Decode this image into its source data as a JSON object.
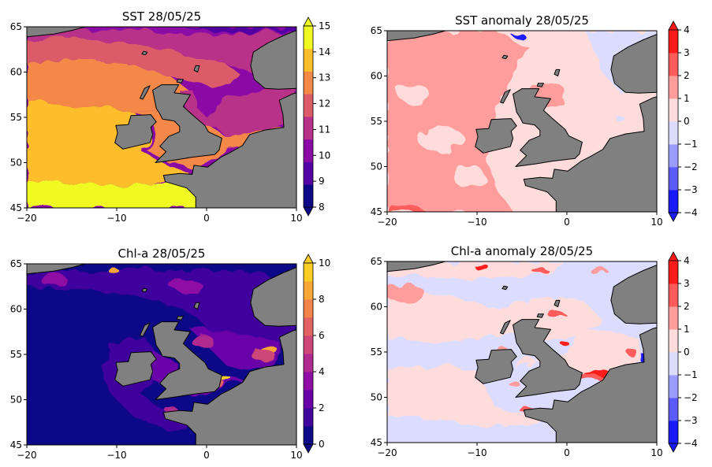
{
  "chart_data": [
    {
      "type": "heatmap",
      "title": "SST 28/05/25",
      "variable": "sst",
      "colormap": "plasma",
      "xlim": [
        -20,
        10
      ],
      "ylim": [
        45,
        65
      ],
      "xticks": [
        "−20",
        "−10",
        "0",
        "10"
      ],
      "yticks": [
        "45",
        "50",
        "55",
        "60",
        "65"
      ],
      "colorbar": {
        "ticks": [
          "8",
          "9",
          "10",
          "11",
          "12",
          "13",
          "14",
          "15"
        ],
        "range": [
          8,
          15
        ],
        "extend": "both",
        "colors": [
          "#0d0887",
          "#5302a3",
          "#8b0aa5",
          "#b83289",
          "#db5c68",
          "#f48849",
          "#febd2a",
          "#f0f921"
        ]
      }
    },
    {
      "type": "heatmap",
      "title": "SST anomaly 28/05/25",
      "variable": "sst-anomaly",
      "colormap": "bwr",
      "xlim": [
        -20,
        10
      ],
      "ylim": [
        45,
        65
      ],
      "xticks": [
        "−20",
        "−10",
        "0",
        "10"
      ],
      "yticks": [
        "45",
        "50",
        "55",
        "60",
        "65"
      ],
      "colorbar": {
        "ticks": [
          "−4",
          "−3",
          "−2",
          "−1",
          "0",
          "1",
          "2",
          "3",
          "4"
        ],
        "range": [
          -4,
          4
        ],
        "extend": "both",
        "colors": [
          "#1a1aff",
          "#5b5bff",
          "#9c9cff",
          "#dcdcff",
          "#ffdcdc",
          "#ff9c9c",
          "#ff5b5b",
          "#ff1a1a"
        ]
      }
    },
    {
      "type": "heatmap",
      "title": "Chl-a 28/05/25",
      "variable": "chl",
      "colormap": "plasma",
      "xlim": [
        -20,
        10
      ],
      "ylim": [
        45,
        65
      ],
      "xticks": [
        "−20",
        "−10",
        "0",
        "10"
      ],
      "yticks": [
        "45",
        "50",
        "55",
        "60",
        "65"
      ],
      "colorbar": {
        "ticks": [
          "0",
          "2",
          "4",
          "6",
          "8",
          "10"
        ],
        "range": [
          0,
          10
        ],
        "extend": "both",
        "colors": [
          "#0d0887",
          "#41049d",
          "#6a00a8",
          "#8f0da4",
          "#b12a90",
          "#cc4778",
          "#e16462",
          "#f2844b",
          "#fca636",
          "#fcce25"
        ]
      }
    },
    {
      "type": "heatmap",
      "title": "Chl-a anomaly 28/05/25",
      "variable": "chl-anomaly",
      "colormap": "bwr",
      "xlim": [
        -20,
        10
      ],
      "ylim": [
        45,
        65
      ],
      "xticks": [
        "−20",
        "−10",
        "0",
        "10"
      ],
      "yticks": [
        "45",
        "50",
        "55",
        "60",
        "65"
      ],
      "colorbar": {
        "ticks": [
          "−4",
          "−3",
          "−2",
          "−1",
          "0",
          "1",
          "2",
          "3",
          "4"
        ],
        "range": [
          -4,
          4
        ],
        "extend": "both",
        "colors": [
          "#1a1aff",
          "#5b5bff",
          "#9c9cff",
          "#dcdcff",
          "#ffdcdc",
          "#ff9c9c",
          "#ff5b5b",
          "#ff1a1a"
        ]
      }
    }
  ],
  "land_color": "#808080"
}
